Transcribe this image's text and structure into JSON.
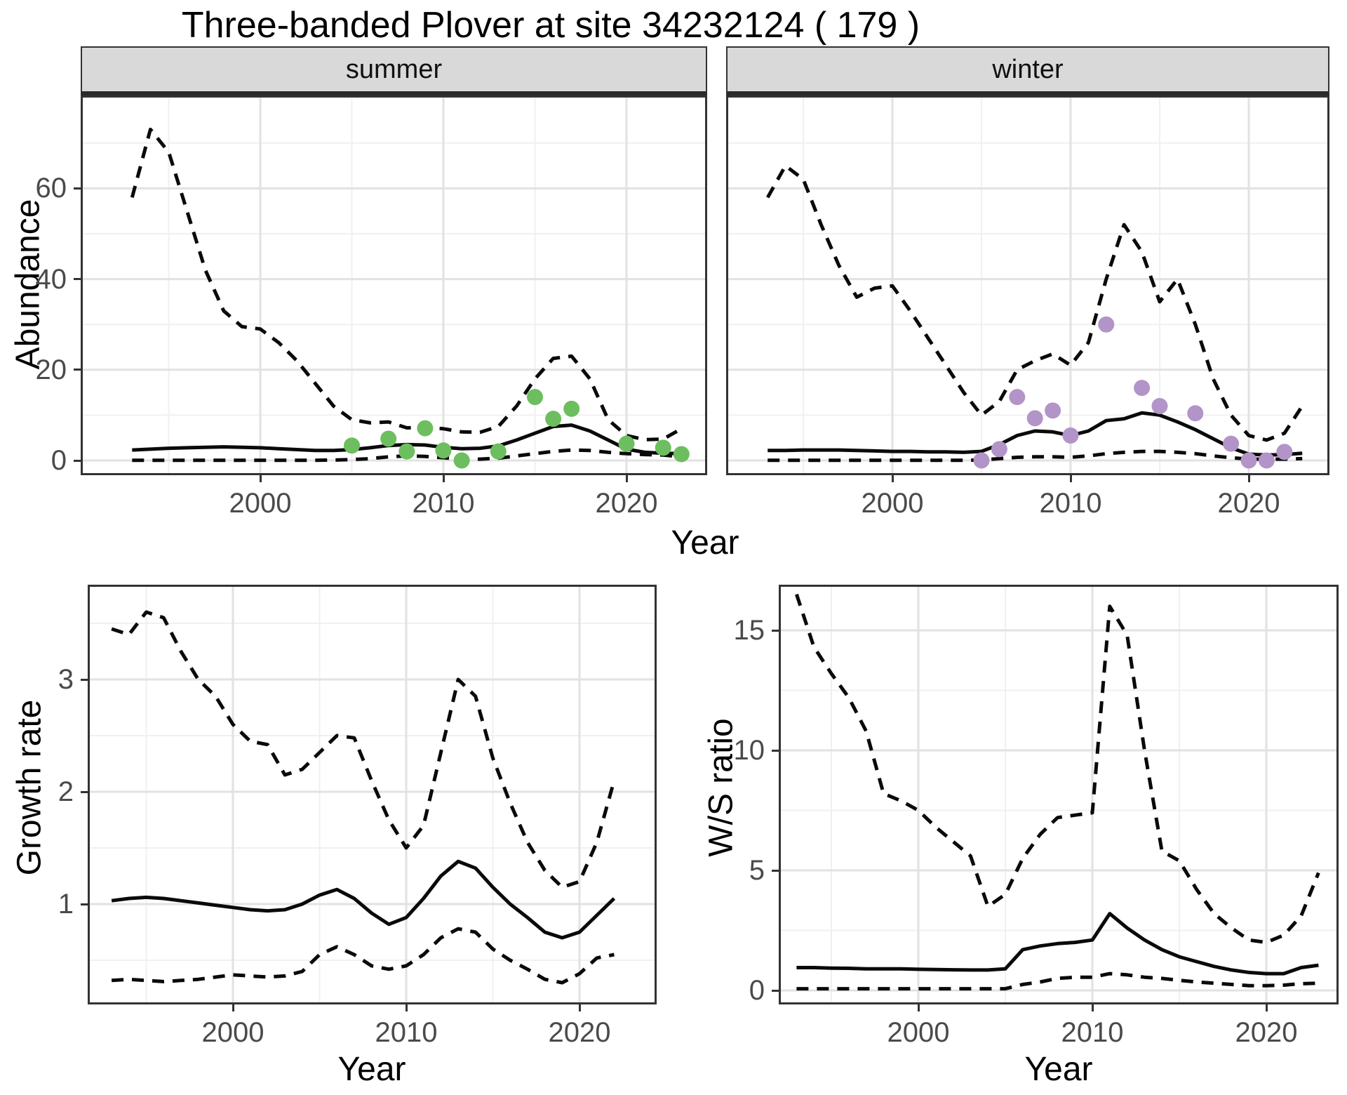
{
  "title": "Three-banded Plover at site 34232124 ( 179 )",
  "facets": {
    "summer": "summer",
    "winter": "winter"
  },
  "axes": {
    "year_label": "Year",
    "abundance_label": "Abundance",
    "growth_label": "Growth rate",
    "ws_label": "W/S ratio"
  },
  "colors": {
    "summer_points": "#6DBE5F",
    "winter_points": "#B294C8",
    "line": "#0a0a0a",
    "grid_major": "#e2e2e2",
    "grid_minor": "#f0f0f0",
    "panel_border": "#333333",
    "strip_bg": "#d9d9d9",
    "tick_text": "#4a4a4a"
  },
  "chart_data": [
    {
      "id": "abundance-summer",
      "type": "line",
      "facet": "summer",
      "title": "",
      "xlabel": "Year",
      "ylabel": "Abundance",
      "legend": "none",
      "grid": "on",
      "xlim": [
        1990.2,
        2024.4
      ],
      "ylim": [
        -3.3,
        81
      ],
      "x_ticks": [
        2000,
        2010,
        2020
      ],
      "y_ticks": [
        0,
        20,
        40,
        60
      ],
      "x": [
        1993,
        1994,
        1995,
        1996,
        1997,
        1998,
        1999,
        2000,
        2001,
        2002,
        2003,
        2004,
        2005,
        2006,
        2007,
        2008,
        2009,
        2010,
        2011,
        2012,
        2013,
        2014,
        2015,
        2016,
        2017,
        2018,
        2019,
        2020,
        2021,
        2022,
        2023
      ],
      "series": [
        {
          "name": "upper_ci",
          "style": "dashed",
          "values": [
            58,
            73,
            68,
            55,
            42,
            33,
            29.5,
            29,
            26,
            22,
            17,
            12,
            9,
            8.3,
            8.5,
            7.2,
            7.3,
            7.0,
            6.3,
            6.2,
            7.5,
            12,
            18,
            22.5,
            23,
            18,
            9,
            5.5,
            4.6,
            4.7,
            7
          ]
        },
        {
          "name": "lower_ci",
          "style": "dashed",
          "values": [
            0.05,
            0.05,
            0.05,
            0.05,
            0.05,
            0.05,
            0.05,
            0.05,
            0.05,
            0.05,
            0.05,
            0.1,
            0.2,
            0.4,
            0.8,
            1.0,
            0.9,
            0.6,
            0.3,
            0.3,
            0.5,
            1.0,
            1.5,
            2.0,
            2.3,
            2.2,
            1.8,
            1.5,
            1.3,
            1.2,
            0.8
          ]
        },
        {
          "name": "mean",
          "style": "solid",
          "values": [
            2.3,
            2.5,
            2.7,
            2.8,
            2.9,
            3.0,
            2.9,
            2.8,
            2.6,
            2.4,
            2.2,
            2.2,
            2.4,
            2.8,
            3.3,
            3.5,
            3.4,
            2.9,
            2.6,
            2.7,
            3.2,
            4.5,
            6.0,
            7.5,
            7.8,
            6.5,
            4.5,
            2.5,
            1.8,
            1.6,
            1.5
          ]
        }
      ],
      "points": {
        "name": "observed_counts",
        "color": "summer_points",
        "x": [
          2005,
          2007,
          2008,
          2009,
          2010,
          2011,
          2013,
          2015,
          2016,
          2017,
          2020,
          2022,
          2023
        ],
        "y": [
          3.3,
          4.8,
          2.0,
          7.1,
          2.2,
          0,
          2.0,
          14,
          9.2,
          11.4,
          3.7,
          2.8,
          1.4
        ]
      }
    },
    {
      "id": "abundance-winter",
      "type": "line",
      "facet": "winter",
      "title": "",
      "xlabel": "Year",
      "ylabel": "Abundance",
      "legend": "none",
      "grid": "on",
      "xlim": [
        1990.7,
        2024.5
      ],
      "ylim": [
        -3.3,
        81
      ],
      "x_ticks": [
        2000,
        2010,
        2020
      ],
      "y_ticks": [
        0,
        20,
        40,
        60
      ],
      "x": [
        1993,
        1994,
        1995,
        1996,
        1997,
        1998,
        1999,
        2000,
        2001,
        2002,
        2003,
        2004,
        2005,
        2006,
        2007,
        2008,
        2009,
        2010,
        2011,
        2012,
        2013,
        2014,
        2015,
        2016,
        2017,
        2018,
        2019,
        2020,
        2021,
        2022,
        2023
      ],
      "series": [
        {
          "name": "upper_ci",
          "style": "dashed",
          "values": [
            58,
            65,
            62,
            52,
            43,
            36,
            38,
            38.5,
            33,
            27,
            21,
            15,
            10,
            13,
            20,
            22,
            23.5,
            21,
            26,
            40,
            52,
            46,
            35,
            40,
            30,
            18,
            10,
            5.5,
            4.5,
            6,
            12
          ]
        },
        {
          "name": "lower_ci",
          "style": "dashed",
          "values": [
            0.05,
            0.05,
            0.05,
            0.05,
            0.05,
            0.05,
            0.05,
            0.05,
            0.05,
            0.05,
            0.05,
            0.05,
            0.1,
            0.4,
            0.7,
            0.8,
            0.8,
            0.7,
            1.0,
            1.5,
            1.8,
            2.0,
            2.0,
            1.8,
            1.5,
            1.0,
            0.6,
            0.3,
            0.3,
            0.3,
            0.4
          ]
        },
        {
          "name": "mean",
          "style": "solid",
          "values": [
            2.2,
            2.2,
            2.3,
            2.3,
            2.3,
            2.2,
            2.1,
            2.0,
            2.0,
            1.9,
            1.9,
            1.8,
            2.0,
            3.5,
            5.5,
            6.5,
            6.3,
            5.5,
            6.5,
            8.8,
            9.2,
            10.5,
            10.0,
            8.5,
            6.8,
            4.8,
            2.8,
            1.4,
            1.2,
            1.3,
            1.6
          ]
        }
      ],
      "points": {
        "name": "observed_counts",
        "color": "winter_points",
        "x": [
          2005,
          2006,
          2007,
          2008,
          2009,
          2010,
          2012,
          2014,
          2015,
          2017,
          2019,
          2020,
          2021,
          2022
        ],
        "y": [
          0,
          2.5,
          14,
          9.3,
          11,
          5.5,
          30,
          16,
          12,
          10.4,
          3.7,
          0,
          0,
          1.9
        ]
      }
    },
    {
      "id": "growth-rate",
      "type": "line",
      "facet": "",
      "title": "",
      "xlabel": "Year",
      "ylabel": "Growth rate",
      "legend": "none",
      "grid": "on",
      "xlim": [
        1991.6,
        2024.4
      ],
      "ylim": [
        0.1,
        3.84
      ],
      "x_ticks": [
        2000,
        2010,
        2020
      ],
      "y_ticks": [
        1,
        2,
        3
      ],
      "x": [
        1993,
        1994,
        1995,
        1996,
        1997,
        1998,
        1999,
        2000,
        2001,
        2002,
        2003,
        2004,
        2005,
        2006,
        2007,
        2008,
        2009,
        2010,
        2011,
        2012,
        2013,
        2014,
        2015,
        2016,
        2017,
        2018,
        2019,
        2020,
        2021,
        2022
      ],
      "series": [
        {
          "name": "upper_ci",
          "style": "dashed",
          "values": [
            3.45,
            3.4,
            3.6,
            3.55,
            3.25,
            3.0,
            2.85,
            2.6,
            2.45,
            2.42,
            2.15,
            2.2,
            2.35,
            2.5,
            2.48,
            2.1,
            1.75,
            1.5,
            1.7,
            2.35,
            3.0,
            2.85,
            2.3,
            1.9,
            1.55,
            1.3,
            1.15,
            1.2,
            1.55,
            2.1
          ]
        },
        {
          "name": "lower_ci",
          "style": "dashed",
          "values": [
            0.32,
            0.33,
            0.32,
            0.31,
            0.32,
            0.33,
            0.35,
            0.37,
            0.36,
            0.35,
            0.36,
            0.4,
            0.55,
            0.62,
            0.55,
            0.45,
            0.42,
            0.45,
            0.55,
            0.7,
            0.78,
            0.75,
            0.6,
            0.5,
            0.42,
            0.33,
            0.3,
            0.38,
            0.52,
            0.55
          ]
        },
        {
          "name": "mean",
          "style": "solid",
          "values": [
            1.03,
            1.05,
            1.06,
            1.05,
            1.03,
            1.01,
            0.99,
            0.97,
            0.95,
            0.94,
            0.95,
            1.0,
            1.08,
            1.13,
            1.05,
            0.92,
            0.82,
            0.88,
            1.05,
            1.25,
            1.38,
            1.32,
            1.15,
            1.0,
            0.88,
            0.75,
            0.7,
            0.75,
            0.9,
            1.05
          ]
        }
      ],
      "points": null
    },
    {
      "id": "ws-ratio",
      "type": "line",
      "facet": "",
      "title": "",
      "xlabel": "Year",
      "ylabel": "W/S ratio",
      "legend": "none",
      "grid": "on",
      "xlim": [
        1991.9,
        2024.1
      ],
      "ylim": [
        -0.6,
        16.9
      ],
      "x_ticks": [
        2000,
        2010,
        2020
      ],
      "y_ticks": [
        0,
        5,
        10,
        15
      ],
      "x": [
        1993,
        1994,
        1995,
        1996,
        1997,
        1998,
        1999,
        2000,
        2001,
        2002,
        2003,
        2004,
        2005,
        2006,
        2007,
        2008,
        2009,
        2010,
        2011,
        2012,
        2013,
        2014,
        2015,
        2016,
        2017,
        2018,
        2019,
        2020,
        2021,
        2022,
        2023
      ],
      "series": [
        {
          "name": "upper_ci",
          "style": "dashed",
          "values": [
            16.5,
            14.3,
            13.2,
            12.2,
            10.8,
            8.2,
            7.9,
            7.5,
            6.8,
            6.2,
            5.6,
            3.5,
            4.0,
            5.5,
            6.5,
            7.2,
            7.3,
            7.4,
            16.0,
            14.8,
            10.0,
            5.8,
            5.4,
            4.2,
            3.2,
            2.6,
            2.1,
            2.0,
            2.3,
            3.1,
            4.9
          ]
        },
        {
          "name": "lower_ci",
          "style": "dashed",
          "values": [
            0.07,
            0.07,
            0.07,
            0.07,
            0.07,
            0.07,
            0.07,
            0.07,
            0.07,
            0.07,
            0.07,
            0.07,
            0.07,
            0.25,
            0.35,
            0.5,
            0.55,
            0.55,
            0.7,
            0.65,
            0.55,
            0.5,
            0.42,
            0.35,
            0.3,
            0.25,
            0.2,
            0.2,
            0.22,
            0.28,
            0.3
          ]
        },
        {
          "name": "mean",
          "style": "solid",
          "values": [
            0.95,
            0.95,
            0.93,
            0.92,
            0.9,
            0.9,
            0.9,
            0.88,
            0.87,
            0.86,
            0.85,
            0.85,
            0.9,
            1.7,
            1.85,
            1.95,
            2.0,
            2.1,
            3.2,
            2.6,
            2.1,
            1.7,
            1.4,
            1.2,
            1.0,
            0.85,
            0.75,
            0.7,
            0.7,
            0.95,
            1.05
          ]
        }
      ],
      "points": null
    }
  ]
}
